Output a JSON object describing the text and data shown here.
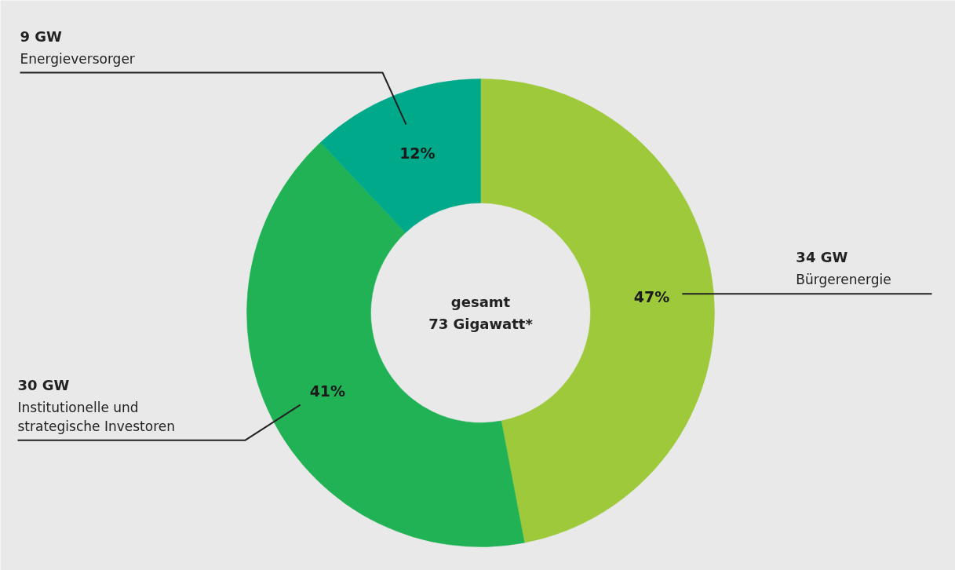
{
  "chart_data": {
    "type": "donut",
    "categories": [
      "Bürgerenergie",
      "Institutionelle und strategische Investoren",
      "Energieversorger"
    ],
    "values": [
      47,
      41,
      12
    ],
    "value_labels": [
      "47%",
      "41%",
      "12%"
    ],
    "colors": [
      "#9dc93b",
      "#22b256",
      "#00a98a"
    ],
    "annotations": [
      "34 GW",
      "30 GW",
      "9 GW",
      "gesamt\n73 Gigawatt*"
    ]
  }
}
